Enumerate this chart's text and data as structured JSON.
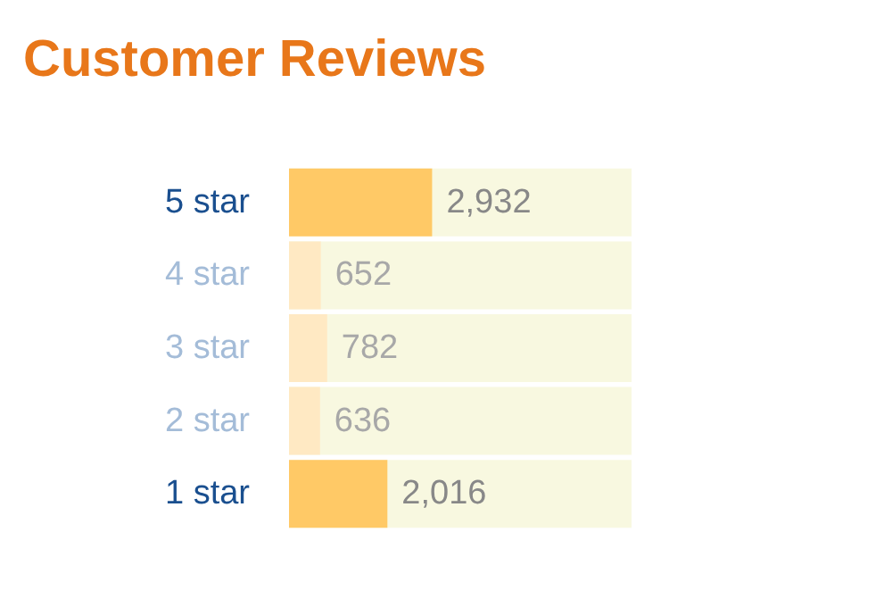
{
  "chart_data": {
    "type": "bar",
    "orientation": "horizontal",
    "title": "Customer Reviews",
    "categories": [
      "5 star",
      "4 star",
      "3 star",
      "2 star",
      "1 star"
    ],
    "values": [
      2932,
      652,
      782,
      636,
      2016
    ],
    "value_labels": [
      "2,932",
      "652",
      "782",
      "636",
      "2,016"
    ],
    "colors": [
      "#ffc966",
      "#ffe9c3",
      "#ffe9c3",
      "#ffe9c3",
      "#ffc966"
    ],
    "tick_labels": "y"
  }
}
